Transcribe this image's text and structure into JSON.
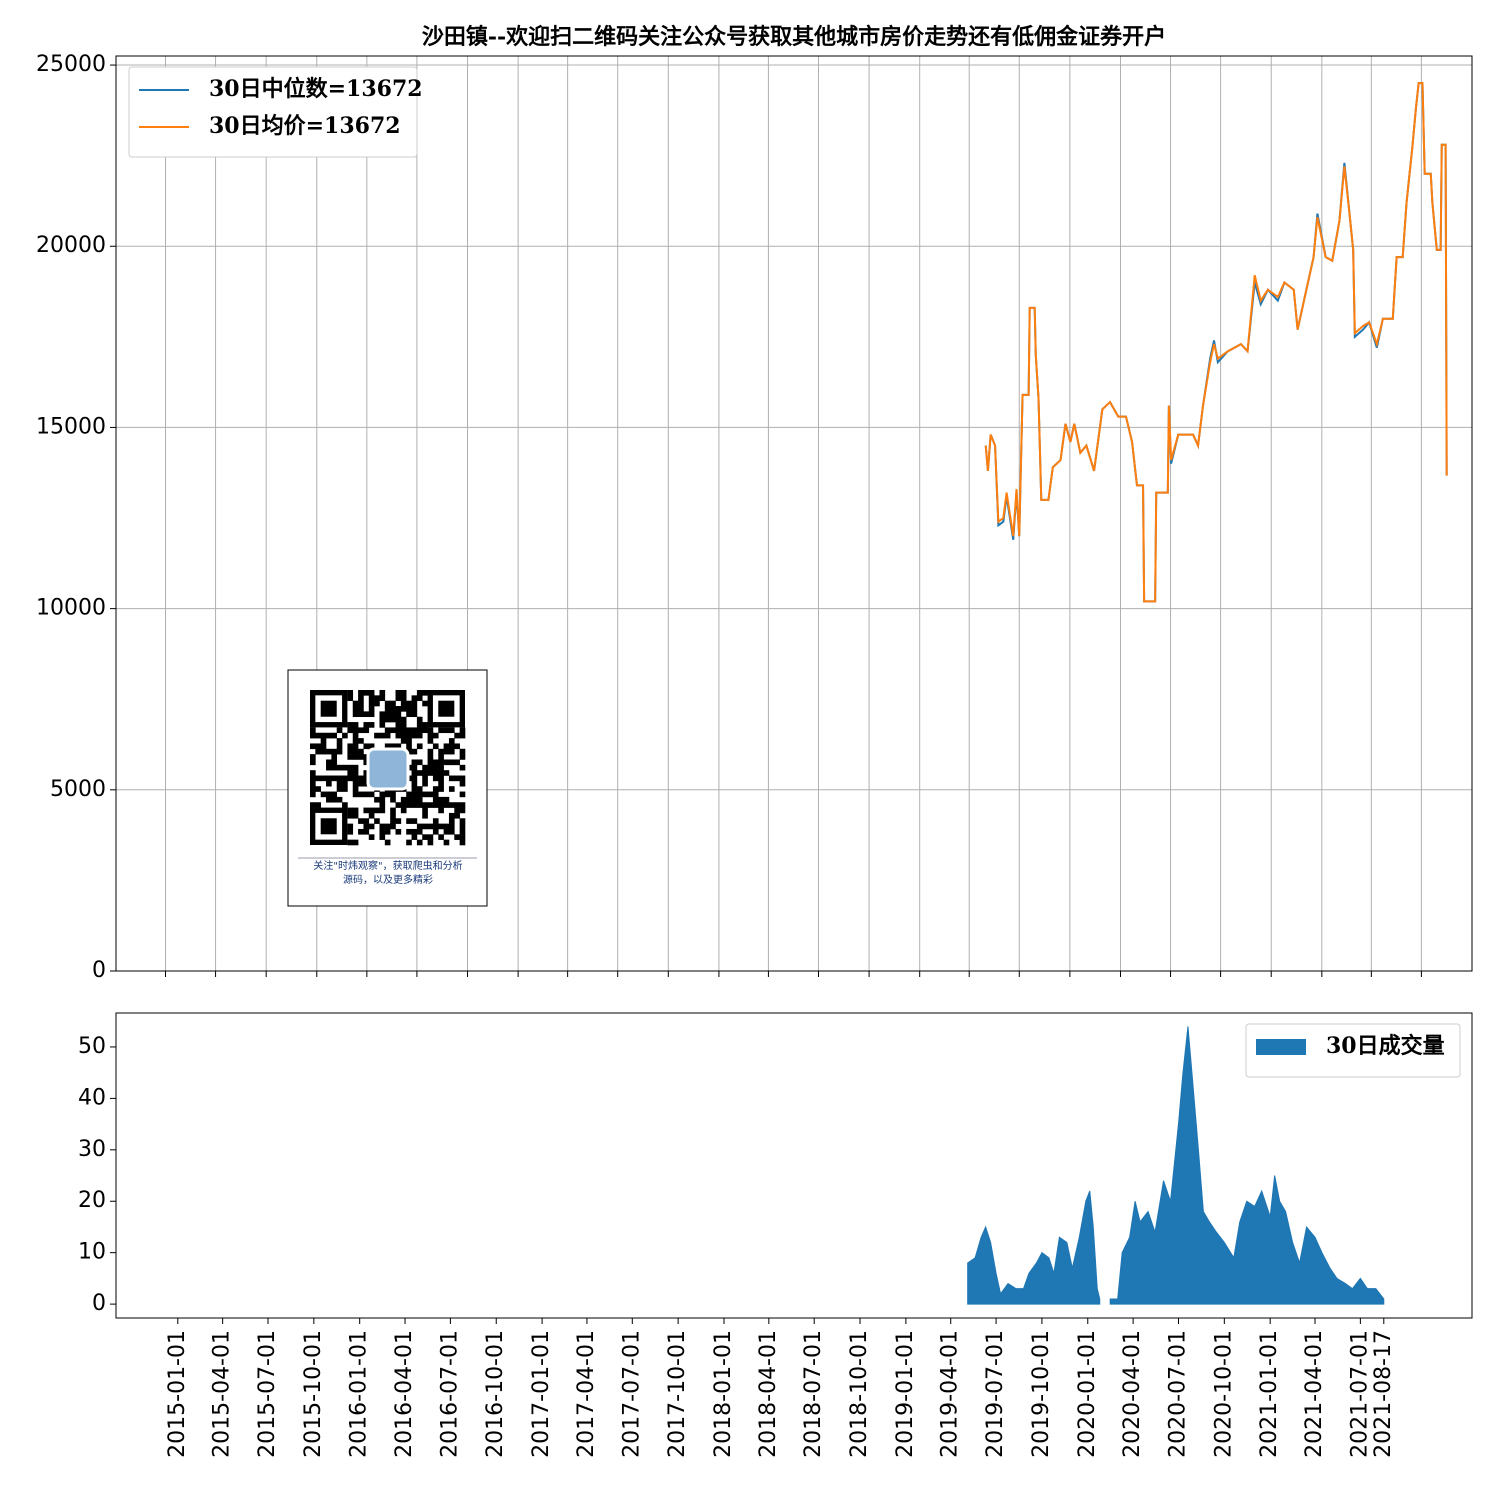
{
  "chart_data": [
    {
      "type": "line",
      "title": "沙田镇--欢迎扫二维码关注公众号获取其他城市房价走势还有低佣金证券开户",
      "x": [
        "2019-05-01",
        "2019-05-05",
        "2019-05-10",
        "2019-05-18",
        "2019-05-24",
        "2019-06-02",
        "2019-06-08",
        "2019-06-15",
        "2019-06-20",
        "2019-06-26",
        "2019-07-01",
        "2019-07-07",
        "2019-07-18",
        "2019-07-20",
        "2019-07-29",
        "2019-07-31",
        "2019-08-05",
        "2019-08-10",
        "2019-08-23",
        "2019-08-31",
        "2019-09-14",
        "2019-09-23",
        "2019-10-02",
        "2019-10-09",
        "2019-10-20",
        "2019-10-31",
        "2019-11-14",
        "2019-11-29",
        "2019-12-13",
        "2019-12-28",
        "2020-01-11",
        "2020-01-22",
        "2020-01-31",
        "2020-02-11",
        "2020-02-13",
        "2020-03-04",
        "2020-03-06",
        "2020-03-27",
        "2020-03-29",
        "2020-04-02",
        "2020-04-15",
        "2020-05-12",
        "2020-05-21",
        "2020-05-30",
        "2020-06-12",
        "2020-06-19",
        "2020-06-26",
        "2020-07-14",
        "2020-08-07",
        "2020-08-19",
        "2020-09-01",
        "2020-09-12",
        "2020-09-25",
        "2020-10-13",
        "2020-10-25",
        "2020-11-11",
        "2020-11-18",
        "2020-12-01",
        "2020-12-17",
        "2020-12-24",
        "2021-01-08",
        "2021-01-20",
        "2021-02-02",
        "2021-02-11",
        "2021-02-21",
        "2021-02-27",
        "2021-03-02",
        "2021-03-17",
        "2021-03-28",
        "2021-04-11",
        "2021-04-22",
        "2021-05-10",
        "2021-05-17",
        "2021-05-28",
        "2021-06-04",
        "2021-06-15",
        "2021-06-21",
        "2021-06-26",
        "2021-07-03",
        "2021-07-07",
        "2021-07-18",
        "2021-07-21",
        "2021-07-29",
        "2021-08-05",
        "2021-08-07",
        "2021-08-14",
        "2021-08-16"
      ],
      "series": [
        {
          "name": "30日中位数=13672",
          "color": "#1f77b4",
          "values": [
            14500,
            13800,
            14800,
            14500,
            12300,
            12400,
            13100,
            12400,
            11900,
            13200,
            12000,
            15900,
            15900,
            18300,
            18300,
            17000,
            15800,
            13000,
            13000,
            13900,
            14100,
            15100,
            14600,
            15100,
            14300,
            14500,
            13800,
            15500,
            15700,
            15300,
            15300,
            14600,
            13400,
            13400,
            10200,
            10200,
            13200,
            13200,
            15600,
            14000,
            14800,
            14800,
            14500,
            15600,
            16900,
            17400,
            16800,
            17100,
            17300,
            17100,
            19000,
            18400,
            18800,
            18500,
            19000,
            18800,
            17700,
            18600,
            19700,
            20900,
            19700,
            19600,
            20700,
            22300,
            20800,
            19900,
            17500,
            17700,
            17900,
            17200,
            18000,
            18000,
            19700,
            19700,
            21200,
            22800,
            23800,
            24500,
            24500,
            22000,
            22000,
            21200,
            19900,
            19900,
            22800,
            22800,
            13672
          ]
        },
        {
          "name": "30日均价=13672",
          "color": "#ff7f0e",
          "values": [
            14500,
            13800,
            14800,
            14500,
            12400,
            12500,
            13200,
            12500,
            12000,
            13300,
            12000,
            15900,
            15900,
            18300,
            18300,
            17000,
            15800,
            13000,
            13000,
            13900,
            14100,
            15100,
            14600,
            15100,
            14300,
            14500,
            13800,
            15500,
            15700,
            15300,
            15300,
            14600,
            13400,
            13400,
            10200,
            10200,
            13200,
            13200,
            15600,
            14100,
            14800,
            14800,
            14500,
            15600,
            16800,
            17300,
            16900,
            17100,
            17300,
            17100,
            19200,
            18500,
            18800,
            18600,
            19000,
            18800,
            17700,
            18600,
            19700,
            20800,
            19700,
            19600,
            20700,
            22200,
            20800,
            19900,
            17600,
            17800,
            17900,
            17300,
            18000,
            18000,
            19700,
            19700,
            21200,
            22800,
            23800,
            24500,
            24500,
            22000,
            22000,
            21200,
            19900,
            19900,
            22800,
            22800,
            13672
          ]
        }
      ],
      "xlim": [
        "2015-01-01",
        "2021-10-01"
      ],
      "xticks": [
        "2015-04-01",
        "2015-07-01",
        "2015-10-01",
        "2016-01-01",
        "2016-04-01",
        "2016-07-01",
        "2016-10-01",
        "2017-01-01",
        "2017-04-01",
        "2017-07-01",
        "2017-10-01",
        "2018-01-01",
        "2018-04-01",
        "2018-07-01",
        "2018-10-01",
        "2019-01-01",
        "2019-04-01",
        "2019-07-01",
        "2019-10-01",
        "2020-01-01",
        "2020-04-01",
        "2020-07-01",
        "2020-10-01",
        "2021-01-01",
        "2021-04-01",
        "2021-07-01"
      ],
      "ylim": [
        0,
        25250
      ],
      "yticks": [
        0,
        5000,
        10000,
        15000,
        20000,
        25000
      ],
      "grid": true,
      "legend": "upper left",
      "annotation": [
        "关注\"时炜观察\"，获取爬虫和分析",
        "源码，以及更多精彩"
      ]
    },
    {
      "type": "area",
      "x": [
        "2019-05-05",
        "2019-05-20",
        "2019-06-01",
        "2019-06-10",
        "2019-06-20",
        "2019-07-01",
        "2019-07-10",
        "2019-07-25",
        "2019-08-10",
        "2019-08-25",
        "2019-09-05",
        "2019-09-20",
        "2019-10-01",
        "2019-10-15",
        "2019-10-25",
        "2019-11-05",
        "2019-11-20",
        "2019-12-01",
        "2019-12-15",
        "2019-12-28",
        "2020-01-05",
        "2020-01-12",
        "2020-01-20",
        "2020-01-25",
        "2020-02-01",
        "2020-02-15",
        "2020-03-01",
        "2020-03-10",
        "2020-03-25",
        "2020-04-05",
        "2020-04-15",
        "2020-05-01",
        "2020-05-15",
        "2020-06-01",
        "2020-06-15",
        "2020-07-01",
        "2020-07-10",
        "2020-07-20",
        "2020-07-28",
        "2020-08-10",
        "2020-08-20",
        "2020-09-01",
        "2020-09-15",
        "2020-10-01",
        "2020-10-20",
        "2020-11-01",
        "2020-11-15",
        "2020-12-01",
        "2020-12-15",
        "2021-01-01",
        "2021-01-10",
        "2021-01-20",
        "2021-02-01",
        "2021-02-15",
        "2021-03-01",
        "2021-03-15",
        "2021-04-01",
        "2021-04-15",
        "2021-05-01",
        "2021-05-15",
        "2021-06-01",
        "2021-06-15",
        "2021-07-01",
        "2021-07-15",
        "2021-08-01",
        "2021-08-17"
      ],
      "series": [
        {
          "name": "30日成交量",
          "color": "#1f77b4",
          "values": [
            8,
            9,
            13,
            15,
            12,
            6,
            2,
            4,
            3,
            3,
            6,
            8,
            10,
            9,
            6,
            13,
            12,
            7,
            13,
            20,
            22,
            15,
            3,
            1,
            null,
            1,
            1,
            10,
            13,
            20,
            16,
            18,
            14,
            24,
            20,
            35,
            45,
            54,
            45,
            30,
            18,
            16,
            14,
            12,
            9,
            16,
            20,
            19,
            22,
            17,
            25,
            20,
            18,
            12,
            8,
            15,
            13,
            10,
            7,
            5,
            4,
            3,
            5,
            3,
            3,
            1
          ]
        }
      ],
      "xlim": [
        "2014-08-30",
        "2022-02-10"
      ],
      "xticks": [
        "2015-01-01",
        "2015-04-01",
        "2015-07-01",
        "2015-10-01",
        "2016-01-01",
        "2016-04-01",
        "2016-07-01",
        "2016-10-01",
        "2017-01-01",
        "2017-04-01",
        "2017-07-01",
        "2017-10-01",
        "2018-01-01",
        "2018-04-01",
        "2018-07-01",
        "2018-10-01",
        "2019-01-01",
        "2019-04-01",
        "2019-07-01",
        "2019-10-01",
        "2020-01-01",
        "2020-04-01",
        "2020-07-01",
        "2020-10-01",
        "2021-01-01",
        "2021-04-01",
        "2021-07-01",
        "2021-08-17"
      ],
      "ylim": [
        -2.7,
        56.6
      ],
      "yticks": [
        0,
        10,
        20,
        30,
        40,
        50
      ],
      "grid": false,
      "legend": "upper right"
    }
  ]
}
